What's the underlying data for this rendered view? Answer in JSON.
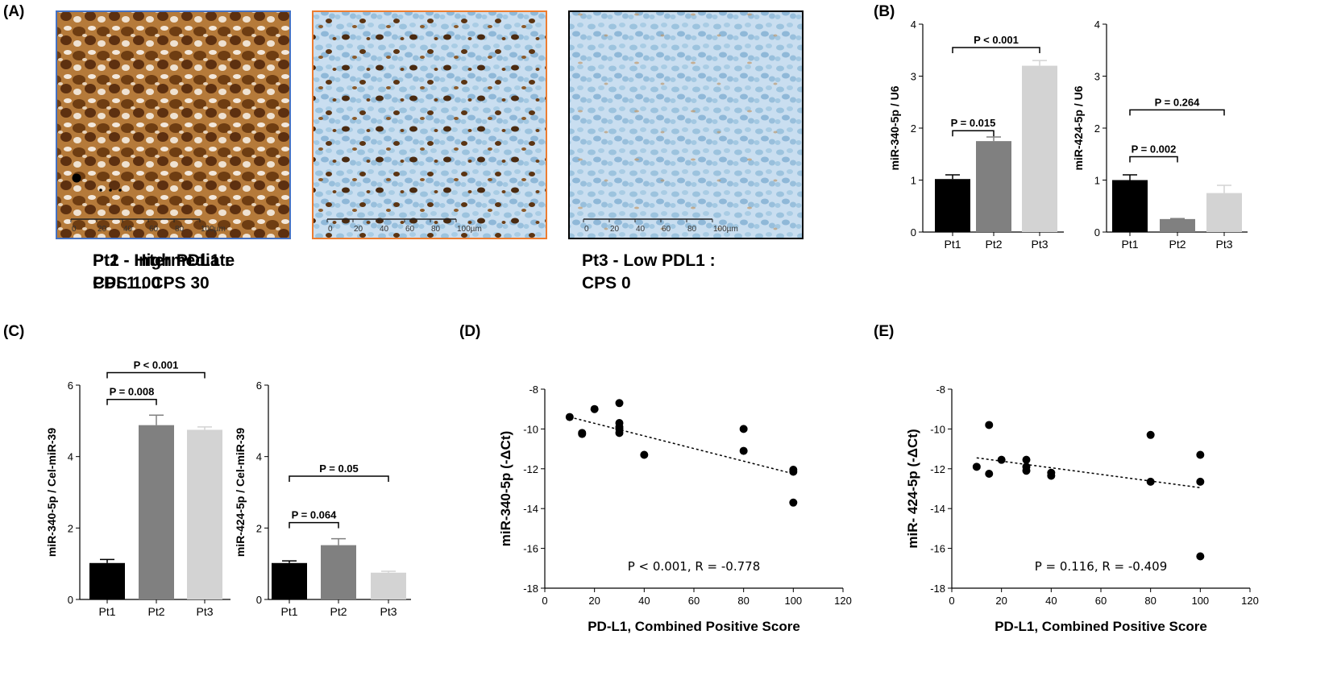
{
  "panel_labels": {
    "a": "(A)",
    "b": "(B)",
    "c": "(C)",
    "d": "(D)",
    "e": "(E)"
  },
  "histology": [
    {
      "caption_line1": "Pt1 - High PDL1 :",
      "caption_line2": "CPS 100",
      "border_color": "#4472c4",
      "stain_level": "high"
    },
    {
      "caption_line1": "Pt2 - Intermediate",
      "caption_line2": "PDL1 : CPS 30",
      "border_color": "#ed7d31",
      "stain_level": "intermediate"
    },
    {
      "caption_line1": "Pt3 - Low PDL1 :",
      "caption_line2": "CPS 0",
      "border_color": "#000000",
      "stain_level": "low"
    }
  ],
  "scale_bar": {
    "ticks": [
      "0",
      "20",
      "40",
      "60",
      "80",
      "100µm"
    ]
  },
  "chart_data": [
    {
      "id": "b1",
      "type": "bar",
      "title": "",
      "categories": [
        "Pt1",
        "Pt2",
        "Pt3"
      ],
      "values": [
        1.02,
        1.75,
        3.2
      ],
      "errors": [
        0.08,
        0.08,
        0.1
      ],
      "colors": [
        "#000000",
        "#808080",
        "#d3d3d3"
      ],
      "ylabel": "miR-340-5p / U6",
      "xlabel": "",
      "ylim": [
        0,
        4
      ],
      "yticks": [
        "0",
        "1",
        "2",
        "3",
        "4"
      ],
      "comparisons": [
        {
          "from": "Pt1",
          "to": "Pt2",
          "label": "P = 0.015",
          "level": 1.95
        },
        {
          "from": "Pt1",
          "to": "Pt3",
          "label": "P < 0.001",
          "level": 3.55
        }
      ]
    },
    {
      "id": "b2",
      "type": "bar",
      "title": "",
      "categories": [
        "Pt1",
        "Pt2",
        "Pt3"
      ],
      "values": [
        1.0,
        0.25,
        0.75
      ],
      "errors": [
        0.1,
        0.01,
        0.15
      ],
      "colors": [
        "#000000",
        "#808080",
        "#d3d3d3"
      ],
      "ylabel": "miR-424-5p / U6",
      "xlabel": "",
      "ylim": [
        0,
        4
      ],
      "yticks": [
        "0",
        "1",
        "2",
        "3",
        "4"
      ],
      "comparisons": [
        {
          "from": "Pt1",
          "to": "Pt2",
          "label": "P = 0.002",
          "level": 1.45
        },
        {
          "from": "Pt1",
          "to": "Pt3",
          "label": "P = 0.264",
          "level": 2.35
        }
      ]
    },
    {
      "id": "c1",
      "type": "bar",
      "title": "",
      "categories": [
        "Pt1",
        "Pt2",
        "Pt3"
      ],
      "values": [
        1.02,
        4.88,
        4.75
      ],
      "errors": [
        0.1,
        0.28,
        0.08
      ],
      "colors": [
        "#000000",
        "#808080",
        "#d3d3d3"
      ],
      "ylabel": "miR-340-5p / Cel-miR-39",
      "xlabel": "",
      "ylim": [
        0,
        6
      ],
      "yticks": [
        "0",
        "2",
        "4",
        "6"
      ],
      "comparisons": [
        {
          "from": "Pt1",
          "to": "Pt2",
          "label": "P = 0.008",
          "level": 5.6
        },
        {
          "from": "Pt1",
          "to": "Pt3",
          "label": "P < 0.001",
          "level": 6.35
        }
      ]
    },
    {
      "id": "c2",
      "type": "bar",
      "title": "",
      "categories": [
        "Pt1",
        "Pt2",
        "Pt3"
      ],
      "values": [
        1.02,
        1.52,
        0.75
      ],
      "errors": [
        0.06,
        0.18,
        0.04
      ],
      "colors": [
        "#000000",
        "#808080",
        "#d3d3d3"
      ],
      "ylabel": "miR-424-5p / Cel-miR-39",
      "xlabel": "",
      "ylim": [
        0,
        6
      ],
      "yticks": [
        "0",
        "2",
        "4",
        "6"
      ],
      "comparisons": [
        {
          "from": "Pt1",
          "to": "Pt2",
          "label": "P = 0.064",
          "level": 2.15
        },
        {
          "from": "Pt1",
          "to": "Pt3",
          "label": "P = 0.05",
          "level": 3.45
        }
      ]
    },
    {
      "id": "d",
      "type": "scatter",
      "title": "",
      "x": [
        10,
        15,
        15,
        20,
        30,
        30,
        30,
        30,
        30,
        40,
        80,
        80,
        100,
        100,
        100
      ],
      "y": [
        -9.4,
        -10.2,
        -10.25,
        -9.0,
        -8.7,
        -9.7,
        -9.9,
        -10.0,
        -10.2,
        -11.3,
        -10.0,
        -11.1,
        -12.05,
        -12.15,
        -13.7
      ],
      "trend": {
        "x": [
          10,
          100
        ],
        "y": [
          -9.4,
          -12.25
        ]
      },
      "annotation": "P < 0.001, R = -0.778",
      "xlabel": "PD-L1, Combined Positive Score",
      "ylabel": "miR-340-5p (-ΔCt)",
      "xlim": [
        0,
        120
      ],
      "ylim": [
        -18,
        -8
      ],
      "xticks": [
        "0",
        "20",
        "40",
        "60",
        "80",
        "100",
        "120"
      ],
      "yticks": [
        "-8",
        "-10",
        "-12",
        "-14",
        "-16",
        "-18"
      ]
    },
    {
      "id": "e",
      "type": "scatter",
      "title": "",
      "x": [
        10,
        15,
        15,
        20,
        30,
        30,
        30,
        40,
        40,
        80,
        80,
        100,
        100,
        100
      ],
      "y": [
        -11.9,
        -9.8,
        -12.25,
        -11.55,
        -11.55,
        -11.9,
        -12.1,
        -12.2,
        -12.35,
        -10.3,
        -12.65,
        -11.3,
        -12.65,
        -16.4
      ],
      "trend": {
        "x": [
          10,
          100
        ],
        "y": [
          -11.45,
          -12.95
        ]
      },
      "annotation": "P = 0.116, R = -0.409",
      "xlabel": "PD-L1, Combined Positive Score",
      "ylabel": "miR- 424-5p (-ΔCt)",
      "xlim": [
        0,
        120
      ],
      "ylim": [
        -18,
        -8
      ],
      "xticks": [
        "0",
        "20",
        "40",
        "60",
        "80",
        "100",
        "120"
      ],
      "yticks": [
        "-8",
        "-10",
        "-12",
        "-14",
        "-16",
        "-18"
      ]
    }
  ]
}
